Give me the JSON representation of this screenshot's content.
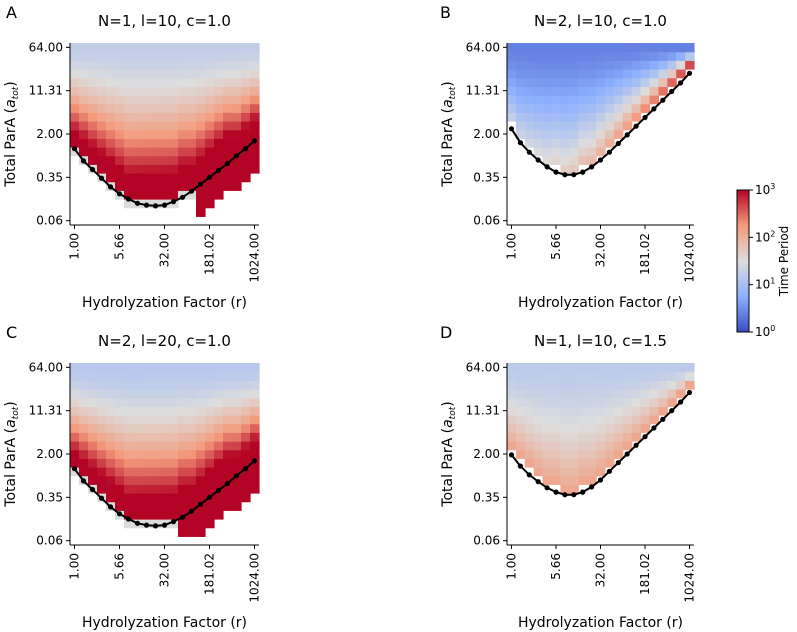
{
  "figure": {
    "colorbar": {
      "label": "Time Period",
      "ticks": [
        {
          "base": "10",
          "exp": "3"
        },
        {
          "base": "10",
          "exp": "2"
        },
        {
          "base": "10",
          "exp": "1"
        },
        {
          "base": "10",
          "exp": "0"
        }
      ],
      "colors": [
        "#3b4cc0",
        "#dddddd",
        "#b40426"
      ]
    }
  },
  "chart_data": [
    {
      "type": "heatmap",
      "panel": "A",
      "title": "N=1, l=10, c=1.0",
      "xlabel": "Hydrolyzation Factor (r)",
      "ylabel_main": "Total ParA (",
      "ylabel_sym": "a",
      "ylabel_sub": "tot",
      "ylabel_end": ")",
      "xticks": [
        "1.00",
        "5.66",
        "32.00",
        "181.02",
        "1024.00"
      ],
      "xtick_values": [
        0,
        5,
        10,
        15,
        20
      ],
      "yticks": [
        "64.00",
        "11.31",
        "2.00",
        "0.35",
        "0.06"
      ],
      "ytick_values": [
        20,
        15,
        10,
        5,
        0
      ],
      "grid_shape": [
        21,
        21
      ],
      "log10_period_range": [
        0,
        3
      ],
      "boundary_r_index": [
        0,
        1,
        2,
        3,
        4,
        5,
        6,
        7,
        8,
        9,
        10,
        11,
        12,
        13,
        14,
        15,
        16,
        17,
        18,
        19,
        20
      ],
      "boundary_a_index": [
        8.3,
        6.9,
        5.9,
        4.9,
        3.9,
        3.1,
        2.5,
        2.0,
        1.8,
        1.7,
        1.8,
        2.2,
        2.7,
        3.4,
        4.2,
        5.0,
        5.8,
        6.6,
        7.5,
        8.3,
        9.2
      ],
      "no_osc_white_columns": [
        0,
        14
      ],
      "period_params": {
        "top": 1.25,
        "bottom": 3.4,
        "tail": 0.2,
        "n": 1.4
      },
      "border_gray": true
    },
    {
      "type": "heatmap",
      "panel": "B",
      "title": "N=2, l=10, c=1.0",
      "xlabel": "Hydrolyzation Factor (r)",
      "ylabel_main": "Total ParA (",
      "ylabel_sym": "a",
      "ylabel_sub": "tot",
      "ylabel_end": ")",
      "xticks": [
        "1.00",
        "5.66",
        "32.00",
        "181.02",
        "1024.00"
      ],
      "xtick_values": [
        0,
        5,
        10,
        15,
        20
      ],
      "yticks": [
        "64.00",
        "11.31",
        "2.00",
        "0.35",
        "0.06"
      ],
      "ytick_values": [
        20,
        15,
        10,
        5,
        0
      ],
      "grid_shape": [
        21,
        21
      ],
      "log10_period_range": [
        0,
        3
      ],
      "boundary_r_index": [
        0,
        1,
        2,
        3,
        4,
        5,
        6,
        7,
        8,
        9,
        10,
        11,
        12,
        13,
        14,
        15,
        16,
        17,
        18,
        19,
        20
      ],
      "boundary_a_index": [
        10.6,
        9.0,
        7.9,
        7.0,
        6.2,
        5.6,
        5.3,
        5.3,
        5.6,
        6.2,
        7.0,
        7.9,
        8.9,
        9.9,
        10.9,
        11.9,
        12.9,
        13.9,
        14.9,
        15.9,
        17.0
      ],
      "no_osc_white_columns": [
        0,
        0
      ],
      "period_params": {
        "top": 0.4,
        "bottom": 1.25,
        "tail": 1.4,
        "n": 1.0
      },
      "border_gray": false
    },
    {
      "type": "heatmap",
      "panel": "C",
      "title": "N=2, l=20, c=1.0",
      "xlabel": "Hydrolyzation Factor (r)",
      "ylabel_main": "Total ParA (",
      "ylabel_sym": "a",
      "ylabel_sub": "tot",
      "ylabel_end": ")",
      "xticks": [
        "1.00",
        "5.66",
        "32.00",
        "181.02",
        "1024.00"
      ],
      "xtick_values": [
        0,
        5,
        10,
        15,
        20
      ],
      "yticks": [
        "64.00",
        "11.31",
        "2.00",
        "0.35",
        "0.06"
      ],
      "ytick_values": [
        20,
        15,
        10,
        5,
        0
      ],
      "grid_shape": [
        21,
        21
      ],
      "log10_period_range": [
        0,
        3
      ],
      "boundary_r_index": [
        0,
        1,
        2,
        3,
        4,
        5,
        6,
        7,
        8,
        9,
        10,
        11,
        12,
        13,
        14,
        15,
        16,
        17,
        18,
        19,
        20
      ],
      "boundary_a_index": [
        8.3,
        6.9,
        5.9,
        4.9,
        3.9,
        3.1,
        2.5,
        2.0,
        1.8,
        1.7,
        1.8,
        2.2,
        2.7,
        3.4,
        4.2,
        5.0,
        5.8,
        6.6,
        7.5,
        8.3,
        9.2
      ],
      "no_osc_white_columns": [
        0,
        12
      ],
      "period_params": {
        "top": 1.15,
        "bottom": 3.4,
        "tail": 0.2,
        "n": 1.3
      },
      "border_gray": true
    },
    {
      "type": "heatmap",
      "panel": "D",
      "title": "N=1, l=10, c=1.5",
      "xlabel": "Hydrolyzation Factor (r)",
      "ylabel_main": "Total ParA (",
      "ylabel_sym": "a",
      "ylabel_sub": "tot",
      "ylabel_end": ")",
      "xticks": [
        "1.00",
        "5.66",
        "32.00",
        "181.02",
        "1024.00"
      ],
      "xtick_values": [
        0,
        5,
        10,
        15,
        20
      ],
      "yticks": [
        "64.00",
        "11.31",
        "2.00",
        "0.35",
        "0.06"
      ],
      "ytick_values": [
        20,
        15,
        10,
        5,
        0
      ],
      "grid_shape": [
        21,
        21
      ],
      "log10_period_range": [
        0,
        3
      ],
      "boundary_r_index": [
        0,
        1,
        2,
        3,
        4,
        5,
        6,
        7,
        8,
        9,
        10,
        11,
        12,
        13,
        14,
        15,
        16,
        17,
        18,
        19,
        20
      ],
      "boundary_a_index": [
        9.9,
        8.6,
        7.6,
        6.8,
        6.1,
        5.6,
        5.3,
        5.3,
        5.6,
        6.2,
        7.0,
        8.0,
        9.0,
        10.0,
        11.0,
        12.0,
        13.0,
        14.0,
        15.0,
        16.0,
        17.1
      ],
      "no_osc_white_columns": [
        0,
        0
      ],
      "period_params": {
        "top": 1.2,
        "bottom": 2.1,
        "tail": 0.0,
        "n": 1.0
      },
      "border_gray": true
    }
  ]
}
